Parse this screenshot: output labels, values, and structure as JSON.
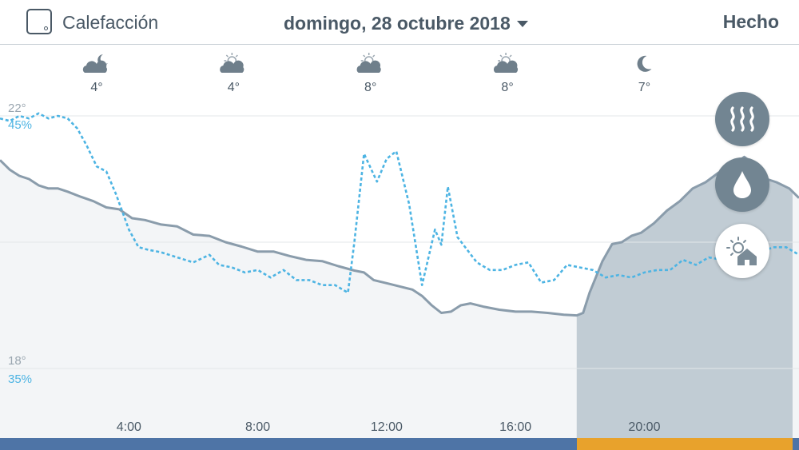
{
  "header": {
    "device_title": "Calefacción",
    "date_label": "domingo, 28 octubre 2018",
    "done_label": "Hecho"
  },
  "weather": [
    {
      "icon": "cloud-night-icon",
      "temp": "4°",
      "hour": 3
    },
    {
      "icon": "cloud-sun-icon",
      "temp": "4°",
      "hour": 7.25
    },
    {
      "icon": "cloud-sun-icon",
      "temp": "8°",
      "hour": 11.5
    },
    {
      "icon": "cloud-sun-icon",
      "temp": "8°",
      "hour": 15.75
    },
    {
      "icon": "moon-icon",
      "temp": "7°",
      "hour": 20
    }
  ],
  "colors": {
    "temperature": "#8a9cab",
    "humidity": "#4db4e3",
    "heating_fill": "#c1ccd4",
    "heating_on": "#e8a22c",
    "heating_off": "#4e74a6",
    "text": "#4a5966"
  },
  "chart_data": {
    "type": "line",
    "x_range": [
      0,
      24.8
    ],
    "x_ticks": [
      "4:00",
      "8:00",
      "12:00",
      "16:00",
      "20:00"
    ],
    "x_tick_hours": [
      4,
      8,
      12,
      16,
      20
    ],
    "temperature_axis": {
      "unit": "°",
      "labels": [
        "22°",
        "18°"
      ],
      "values": [
        22,
        18
      ],
      "ylim": [
        17.95,
        22.55
      ]
    },
    "humidity_axis": {
      "unit": "%",
      "labels": [
        "45%",
        "35%"
      ],
      "values": [
        45,
        35
      ]
    },
    "gridlines": [
      22,
      20,
      18
    ],
    "series": [
      {
        "id": "temperature",
        "x": [
          0,
          0.3,
          0.6,
          0.9,
          1.2,
          1.5,
          1.8,
          2.1,
          2.5,
          2.9,
          3.3,
          3.7,
          4.1,
          4.5,
          5.0,
          5.5,
          6.0,
          6.5,
          7.0,
          7.5,
          8.0,
          8.5,
          9.0,
          9.5,
          10.0,
          10.5,
          11.0,
          11.3,
          11.6,
          12.0,
          12.4,
          12.8,
          13.1,
          13.4,
          13.7,
          14.0,
          14.3,
          14.6,
          15.0,
          15.5,
          16.0,
          16.5,
          17.0,
          17.5,
          17.9,
          18.1,
          18.3,
          18.7,
          19.0,
          19.3,
          19.6,
          19.9,
          20.3,
          20.7,
          21.1,
          21.5,
          21.9,
          22.3,
          22.7,
          23.1,
          23.5,
          23.8,
          24.1,
          24.5,
          24.8
        ],
        "values": [
          21.3,
          21.15,
          21.05,
          21.0,
          20.9,
          20.85,
          20.85,
          20.8,
          20.72,
          20.65,
          20.55,
          20.52,
          20.38,
          20.35,
          20.28,
          20.25,
          20.12,
          20.1,
          20.0,
          19.93,
          19.85,
          19.85,
          19.78,
          19.72,
          19.7,
          19.62,
          19.55,
          19.52,
          19.4,
          19.35,
          19.3,
          19.25,
          19.15,
          19.0,
          18.88,
          18.9,
          19.0,
          19.03,
          18.98,
          18.93,
          18.9,
          18.9,
          18.88,
          18.85,
          18.84,
          18.88,
          19.2,
          19.7,
          19.97,
          20.0,
          20.1,
          20.15,
          20.3,
          20.5,
          20.65,
          20.85,
          20.95,
          21.1,
          21.2,
          21.35,
          21.2,
          21.0,
          20.95,
          20.85,
          20.7
        ],
        "line_style": "solid"
      },
      {
        "id": "humidity",
        "x": [
          0,
          0.3,
          0.6,
          0.9,
          1.2,
          1.5,
          1.8,
          2.1,
          2.4,
          2.7,
          3.0,
          3.3,
          3.6,
          4.0,
          4.3,
          4.6,
          5.0,
          5.5,
          6.0,
          6.5,
          6.8,
          7.2,
          7.6,
          8.0,
          8.4,
          8.8,
          9.2,
          9.6,
          10.0,
          10.4,
          10.8,
          11.0,
          11.3,
          11.7,
          12.0,
          12.3,
          12.7,
          13.1,
          13.5,
          13.7,
          13.9,
          14.2,
          14.5,
          14.8,
          15.2,
          15.6,
          16.0,
          16.4,
          16.8,
          17.2,
          17.6,
          18.0,
          18.4,
          18.8,
          19.2,
          19.6,
          20.0,
          20.4,
          20.8,
          21.2,
          21.6,
          22.0,
          22.4,
          22.8,
          23.2,
          23.6,
          24.0,
          24.4,
          24.8
        ],
        "values": [
          44.9,
          44.8,
          45.0,
          44.9,
          45.1,
          44.9,
          45.0,
          44.9,
          44.5,
          43.8,
          43.0,
          42.8,
          41.9,
          40.5,
          39.8,
          39.7,
          39.6,
          39.4,
          39.2,
          39.5,
          39.1,
          39.0,
          38.8,
          38.9,
          38.6,
          38.9,
          38.5,
          38.5,
          38.3,
          38.3,
          38.0,
          40.0,
          43.5,
          42.4,
          43.3,
          43.6,
          41.5,
          38.3,
          40.5,
          39.9,
          42.2,
          40.2,
          39.7,
          39.2,
          38.9,
          38.9,
          39.1,
          39.2,
          38.4,
          38.5,
          39.1,
          39.0,
          38.9,
          38.6,
          38.7,
          38.6,
          38.8,
          38.9,
          38.9,
          39.3,
          39.1,
          39.4,
          39.3,
          39.3,
          39.5,
          39.6,
          39.8,
          39.8,
          39.5
        ],
        "line_style": "dotted"
      }
    ],
    "heating_periods": [
      [
        17.9,
        24.6
      ]
    ]
  },
  "buttons": {
    "heat": {
      "icon": "heat-waves-icon"
    },
    "humidity": {
      "icon": "water-drop-icon"
    },
    "outdoor": {
      "icon": "sun-house-icon"
    }
  }
}
